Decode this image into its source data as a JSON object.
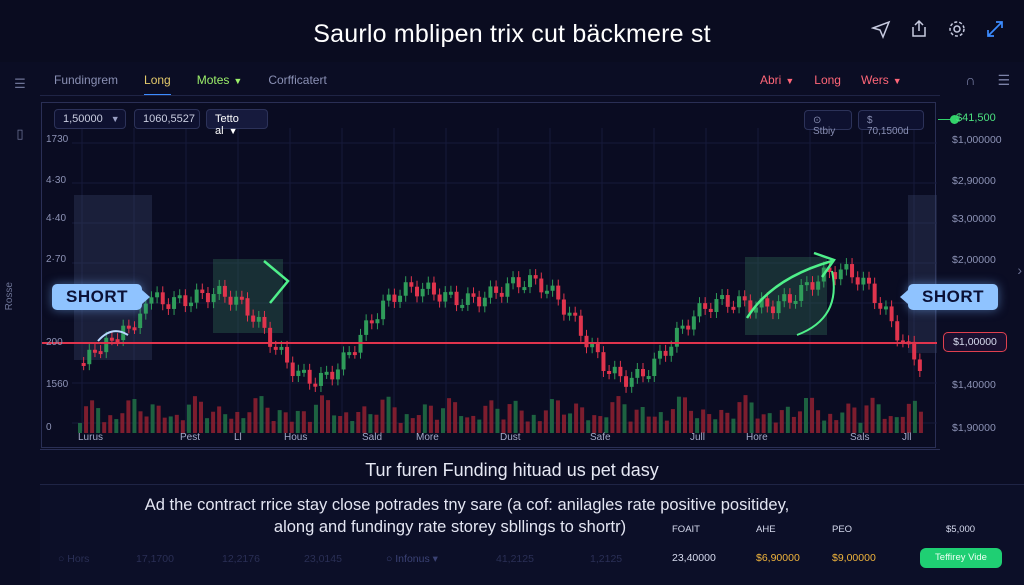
{
  "window": {
    "title": "Saurlo mblipen trix cut bäckmere st"
  },
  "top_icons": [
    "send-icon",
    "share-icon",
    "settings-icon",
    "expand-icon"
  ],
  "left_rail": {
    "vertical_label": "Rosse"
  },
  "tabs": [
    {
      "label": "Fundingrem",
      "state": "normal"
    },
    {
      "label": "Long",
      "state": "active"
    },
    {
      "label": "Motes",
      "state": "green"
    },
    {
      "label": "Corfficatert",
      "state": "normal"
    }
  ],
  "tabs_right": [
    {
      "label": "Abri",
      "dropdown": true
    },
    {
      "label": "Long",
      "dropdown": false
    },
    {
      "label": "Wers",
      "dropdown": true
    }
  ],
  "toolbar": {
    "amount": "1,50000",
    "price": "1060,5527",
    "select": "Tetto al",
    "right_btn_1": "⊙ Stbiy",
    "right_btn_2": "$ 70,1500d"
  },
  "y_left": [
    "1730",
    "4·30",
    "4·40",
    "2·70",
    "200",
    "1560",
    "0"
  ],
  "y_right": [
    "$1,000000",
    "$2,90000",
    "$3,00000",
    "$2,00000",
    "$1,00000",
    "$1,40000",
    "$1,90000"
  ],
  "price_top": "$41,500",
  "price_box": "$1,00000",
  "short_left": "SHORT",
  "short_right": "SHORT",
  "x_labels": [
    "Lurus",
    "Pest",
    "Ll",
    "Hous",
    "Sald",
    "More",
    "Dust",
    "Safe",
    "Jull",
    "Hore",
    "Sals",
    "Jll"
  ],
  "headline": "Tur furen Funding hituad us pet dasy",
  "description_1": "Ad the contract rrice stay close potrades tny sare (a cof: anilagles rate positive positidey,",
  "description_2": "along and fundingy rate storey sbllings to shortr)",
  "stats_heads": [
    "FOAIT",
    "AHE",
    "PEO",
    "$5,000"
  ],
  "stats_vals": [
    "23,40000",
    "$6,90000",
    "$9,00000"
  ],
  "faded_row": [
    "Hors",
    "17,1700",
    "12,2176",
    "23,0145",
    "Infonus",
    "41,2125",
    "1",
    "2125"
  ],
  "action_button": "Teffirey Vide",
  "colors": {
    "bull": "#2f9c5a",
    "bear": "#e0344d",
    "accent": "#3c8cff",
    "level": "#e0344d"
  }
}
